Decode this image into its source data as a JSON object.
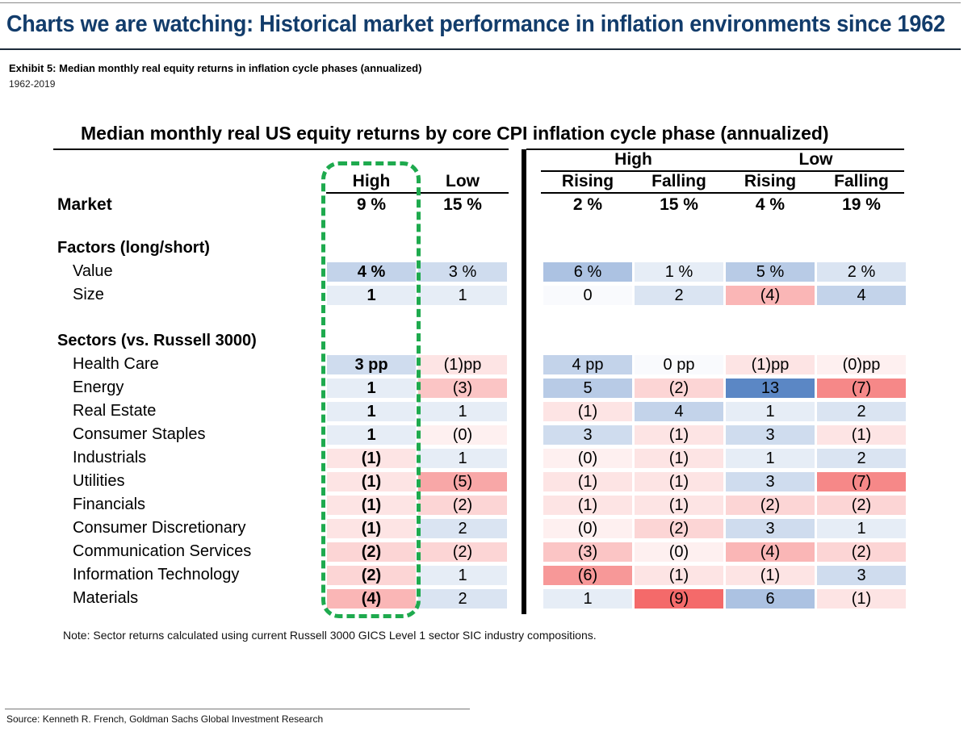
{
  "header": {
    "title": "Charts we are watching: Historical market performance in inflation environments since 1962",
    "exhibit": "Exhibit 5: Median monthly real equity returns in inflation cycle phases (annualized)",
    "period": "1962-2019"
  },
  "footer": {
    "note": "Note: Sector returns calculated using current Russell 3000 GICS Level 1 sector SIC industry compositions.",
    "source": "Source: Kenneth R. French, Goldman Sachs Global Investment Research"
  },
  "colors": {
    "title": "#123c6b",
    "highlight": "#1eaa4e",
    "positive_max": "#5b87c5",
    "negative_max": "#f46a6a"
  },
  "chart_data": {
    "type": "table",
    "title": "Median monthly real US equity returns by core CPI inflation cycle phase (annualized)",
    "column_groups": [
      {
        "label": "",
        "columns": [
          "High",
          "Low"
        ]
      },
      {
        "label": "High",
        "columns": [
          "Rising",
          "Falling"
        ]
      },
      {
        "label": "Low",
        "columns": [
          "Rising",
          "Falling"
        ]
      }
    ],
    "columns": [
      "High",
      "Low",
      "High Rising",
      "High Falling",
      "Low Rising",
      "Low Falling"
    ],
    "column_labels": [
      "High",
      "Low",
      "Rising",
      "Falling",
      "Rising",
      "Falling"
    ],
    "group_labels": [
      "High",
      "Low"
    ],
    "highlighted_column": "High",
    "market": {
      "label": "Market",
      "values": [
        9,
        15,
        2,
        15,
        4,
        19
      ],
      "display": [
        "9 %",
        "15 %",
        "2 %",
        "15 %",
        "4 %",
        "19 %"
      ]
    },
    "sections": [
      {
        "label": "Factors (long/short)",
        "rows": [
          {
            "label": "Value",
            "values": [
              4,
              3,
              6,
              1,
              5,
              2
            ],
            "display": [
              "4 %",
              "3 %",
              "6 %",
              "1 %",
              "5 %",
              "2 %"
            ]
          },
          {
            "label": "Size",
            "values": [
              1,
              1,
              0,
              2,
              -4,
              4
            ],
            "display": [
              "1",
              "1",
              "0",
              "2",
              "(4)",
              "4"
            ]
          }
        ]
      },
      {
        "label": "Sectors (vs. Russell 3000)",
        "rows": [
          {
            "label": "Health Care",
            "values": [
              3,
              -1,
              4,
              0,
              -1,
              -0.2
            ],
            "display": [
              "3 pp",
              "(1)pp",
              "4 pp",
              "0 pp",
              "(1)pp",
              "(0)pp"
            ]
          },
          {
            "label": "Energy",
            "values": [
              1,
              -3,
              5,
              -2,
              13,
              -7
            ],
            "display": [
              "1",
              "(3)",
              "5",
              "(2)",
              "13",
              "(7)"
            ]
          },
          {
            "label": "Real Estate",
            "values": [
              1,
              1,
              -1,
              4,
              1,
              2
            ],
            "display": [
              "1",
              "1",
              "(1)",
              "4",
              "1",
              "2"
            ]
          },
          {
            "label": "Consumer Staples",
            "values": [
              1,
              -0.2,
              3,
              -1,
              3,
              -1
            ],
            "display": [
              "1",
              "(0)",
              "3",
              "(1)",
              "3",
              "(1)"
            ]
          },
          {
            "label": "Industrials",
            "values": [
              -1,
              1,
              -0.2,
              -1,
              1,
              2
            ],
            "display": [
              "(1)",
              "1",
              "(0)",
              "(1)",
              "1",
              "2"
            ]
          },
          {
            "label": "Utilities",
            "values": [
              -1,
              -5,
              -1,
              -1,
              3,
              -7
            ],
            "display": [
              "(1)",
              "(5)",
              "(1)",
              "(1)",
              "3",
              "(7)"
            ]
          },
          {
            "label": "Financials",
            "values": [
              -1,
              -2,
              -1,
              -1,
              -2,
              -2
            ],
            "display": [
              "(1)",
              "(2)",
              "(1)",
              "(1)",
              "(2)",
              "(2)"
            ]
          },
          {
            "label": "Consumer Discretionary",
            "values": [
              -1,
              2,
              -0.2,
              -2,
              3,
              1
            ],
            "display": [
              "(1)",
              "2",
              "(0)",
              "(2)",
              "3",
              "1"
            ]
          },
          {
            "label": "Communication Services",
            "values": [
              -2,
              -2,
              -3,
              -0.2,
              -4,
              -2
            ],
            "display": [
              "(2)",
              "(2)",
              "(3)",
              "(0)",
              "(4)",
              "(2)"
            ]
          },
          {
            "label": "Information Technology",
            "values": [
              -2,
              1,
              -6,
              -1,
              -1,
              3
            ],
            "display": [
              "(2)",
              "1",
              "(6)",
              "(1)",
              "(1)",
              "3"
            ]
          },
          {
            "label": "Materials",
            "values": [
              -4,
              2,
              1,
              -9,
              6,
              -1
            ],
            "display": [
              "(4)",
              "2",
              "1",
              "(9)",
              "6",
              "(1)"
            ]
          }
        ]
      }
    ]
  }
}
